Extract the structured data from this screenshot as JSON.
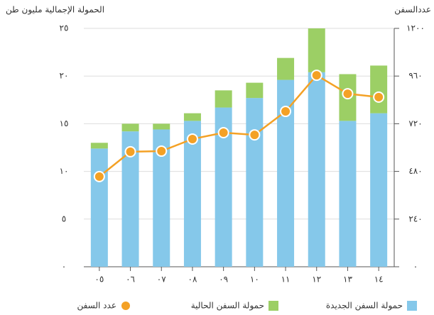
{
  "chart_data": {
    "type": "bar-line",
    "y_label": "الحمولة الإجمالية مليون طن",
    "y2_label": "عددالسفن",
    "categories": [
      "٠٥",
      "٠٦",
      "٠٧",
      "٠٨",
      "٠٩",
      "١٠",
      "١١",
      "١٢",
      "١٣",
      "١٤"
    ],
    "series": [
      {
        "name": "حمولة السفن الجديدة",
        "color": "#85c8ea",
        "type": "bar",
        "values": [
          12.4,
          14.2,
          14.4,
          15.3,
          16.7,
          17.7,
          19.6,
          20.4,
          15.3,
          16.1
        ]
      },
      {
        "name": "حمولة السفن الحالية",
        "color": "#9ccf65",
        "type": "bar",
        "values": [
          0.6,
          0.8,
          0.6,
          0.8,
          1.8,
          1.6,
          2.3,
          4.6,
          4.9,
          5.0
        ]
      },
      {
        "name": "عدد السفن",
        "color": "#f4a125",
        "type": "line",
        "axis": "y2",
        "values": [
          454,
          579,
          582,
          643,
          675,
          664,
          782,
          964,
          871,
          854
        ]
      }
    ],
    "stacked": true,
    "ylim": [
      0,
      25
    ],
    "yticks": [
      {
        "value": 0,
        "label": "٠"
      },
      {
        "value": 5,
        "label": "٥"
      },
      {
        "value": 10,
        "label": "١٠"
      },
      {
        "value": 15,
        "label": "١٥"
      },
      {
        "value": 20,
        "label": "٢٠"
      },
      {
        "value": 25,
        "label": "٢٥"
      }
    ],
    "y2lim": [
      0,
      1200
    ],
    "y2ticks": [
      {
        "value": 0,
        "label": "٠"
      },
      {
        "value": 240,
        "label": "٢٤٠"
      },
      {
        "value": 480,
        "label": "٤٨٠"
      },
      {
        "value": 720,
        "label": "٧٢٠"
      },
      {
        "value": 960,
        "label": "٩٦٠"
      },
      {
        "value": 1200,
        "label": "١٢٠٠"
      }
    ],
    "grid": true
  }
}
